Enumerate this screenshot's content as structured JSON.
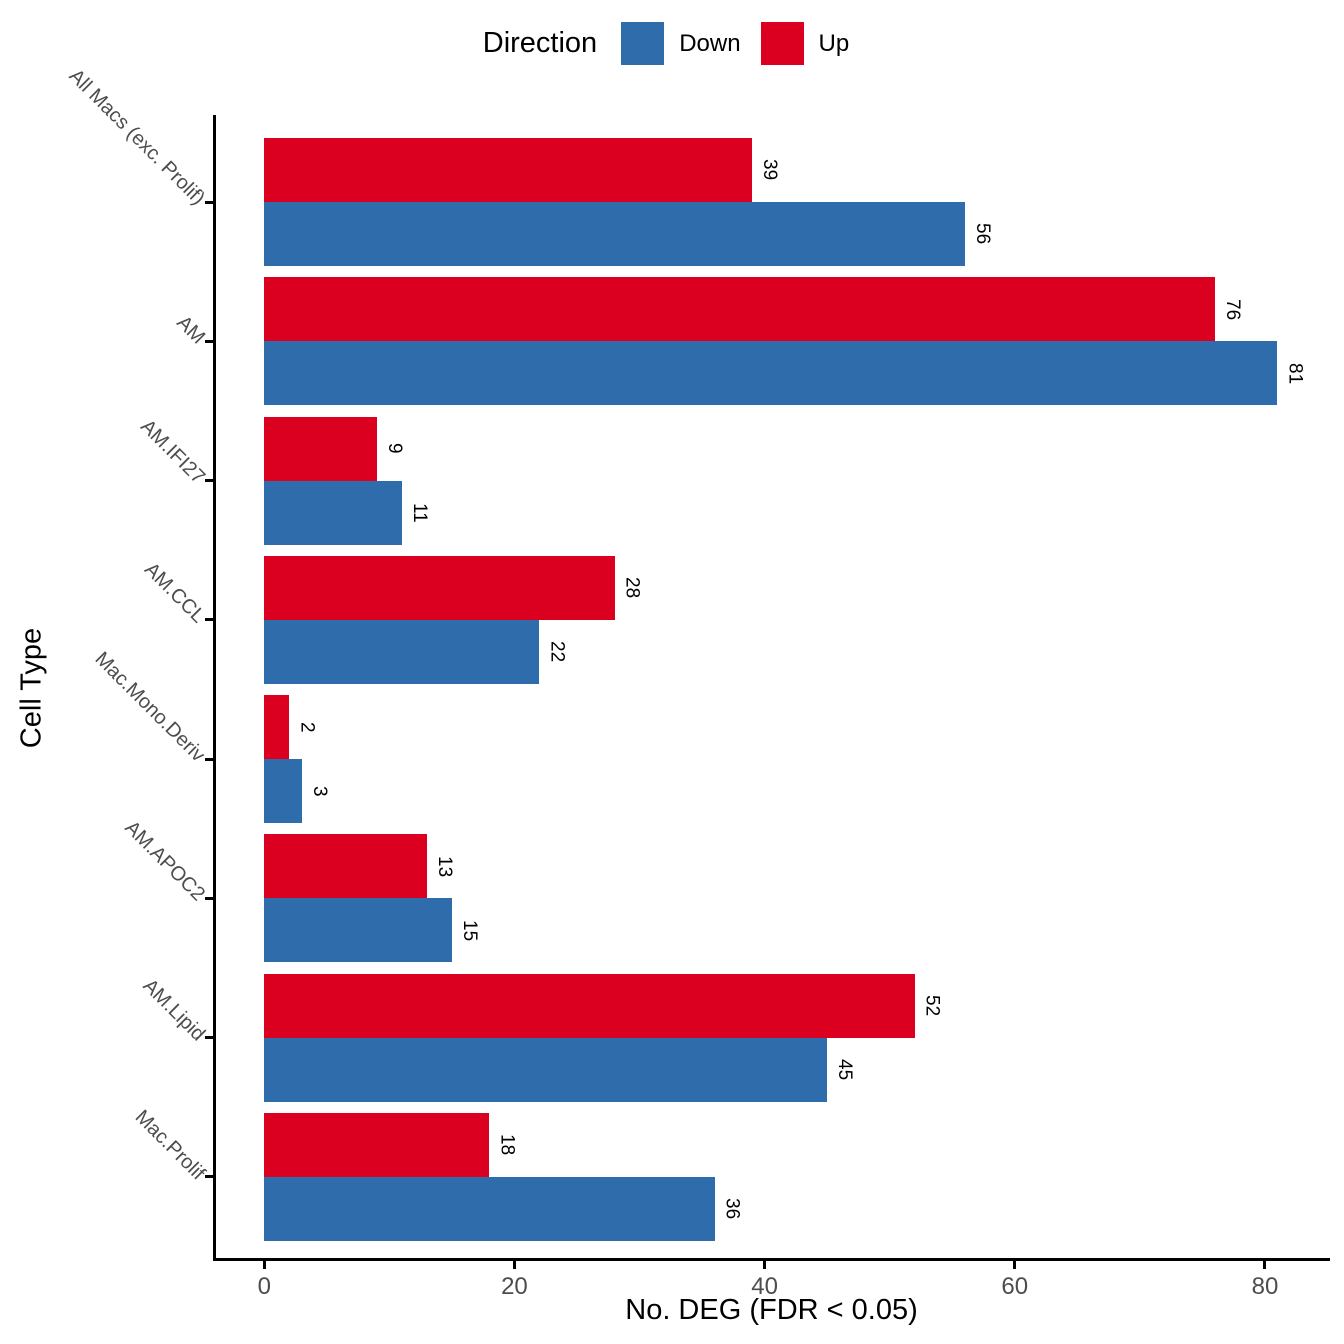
{
  "chart_data": {
    "type": "bar",
    "orientation": "horizontal",
    "categories": [
      "All Macs (exc. Prolif)",
      "AM",
      "AM.IFI27",
      "AM.CCL",
      "Mac.Mono.Deriv",
      "AM.APOC2",
      "AM.Lipid",
      "Mac.Prolif"
    ],
    "series": [
      {
        "name": "Down",
        "color": "#2E6CAC",
        "values": [
          56,
          81,
          11,
          22,
          3,
          15,
          45,
          36
        ]
      },
      {
        "name": "Up",
        "color": "#DB0020",
        "values": [
          39,
          76,
          9,
          28,
          2,
          13,
          52,
          18
        ]
      }
    ],
    "value_labels": true,
    "legend_title": "Direction",
    "legend_position": "top",
    "xlabel": "No. DEG (FDR < 0.05)",
    "ylabel": "Cell Type",
    "x_ticks": [
      0,
      20,
      40,
      60,
      80
    ],
    "xlim": [
      -4.1,
      85.2
    ],
    "grid": false,
    "axis_text_color": "#4D4D4D",
    "axis_line_color": "#000000"
  }
}
